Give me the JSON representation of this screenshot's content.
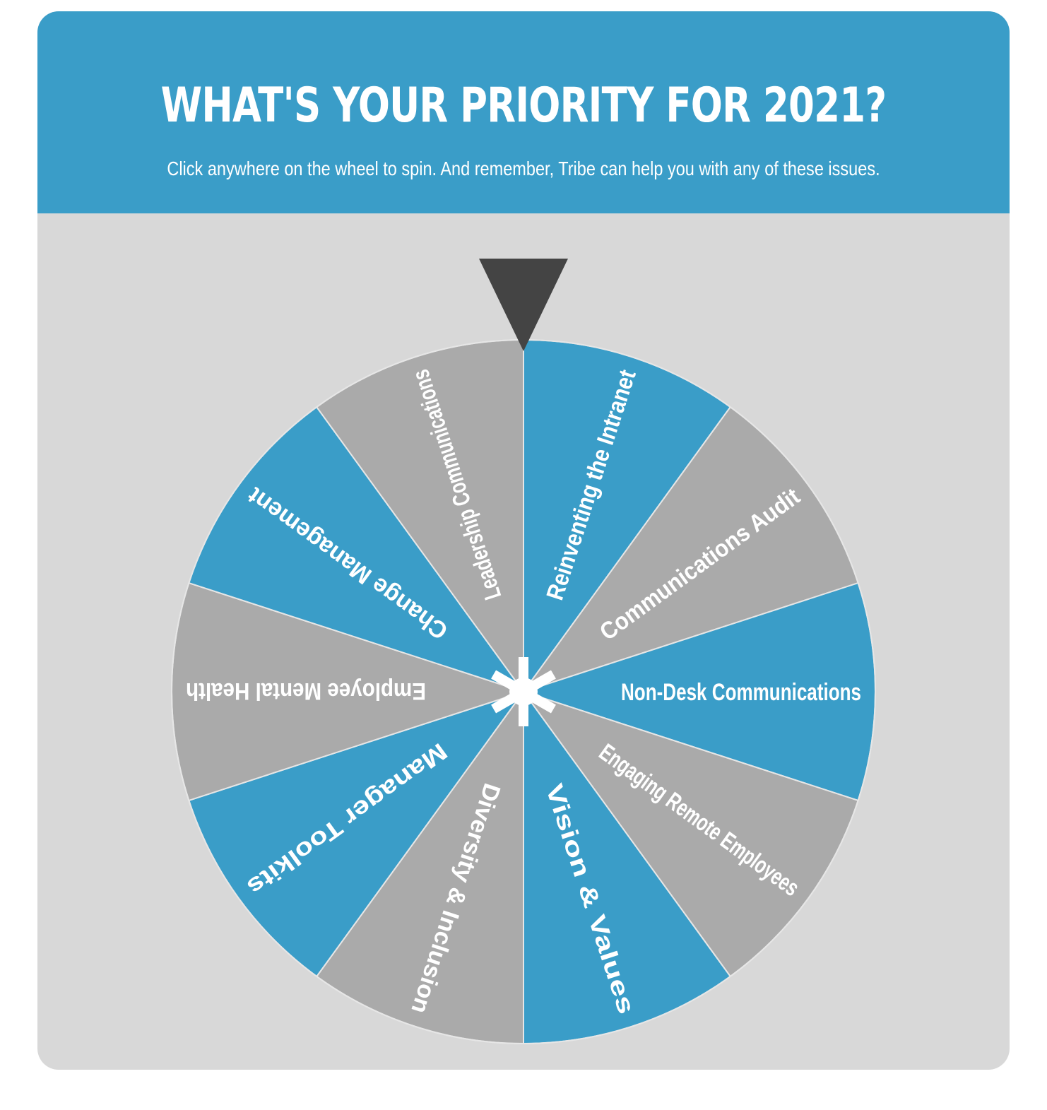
{
  "header": {
    "title": "WHAT'S YOUR PRIORITY FOR 2021?",
    "subtitle": "Click anywhere on the wheel to spin. And remember, Tribe can help you with any of these issues."
  },
  "colors": {
    "banner": "#3a9dc8",
    "panel": "#d8d8d8",
    "segment_blue": "#3a9dc8",
    "segment_gray": "#aaaaaa",
    "pointer": "#444444",
    "hub": "#ffffff"
  },
  "wheel": {
    "pointer_icon": "down-triangle-pointer-icon",
    "hub_icon": "asterisk-icon",
    "segments": [
      {
        "label": "Reinventing the Intranet",
        "color": "blue"
      },
      {
        "label": "Communications Audit",
        "color": "gray"
      },
      {
        "label": "Non-Desk Communications",
        "color": "blue"
      },
      {
        "label": "Engaging Remote Employees",
        "color": "gray"
      },
      {
        "label": "Vision & Values",
        "color": "blue"
      },
      {
        "label": "Diversity & Inclusion",
        "color": "gray"
      },
      {
        "label": "Manager Toolkits",
        "color": "blue"
      },
      {
        "label": "Employee Mental Health",
        "color": "gray"
      },
      {
        "label": "Change Management",
        "color": "blue"
      },
      {
        "label": "Leadership Communications",
        "color": "gray"
      }
    ]
  }
}
